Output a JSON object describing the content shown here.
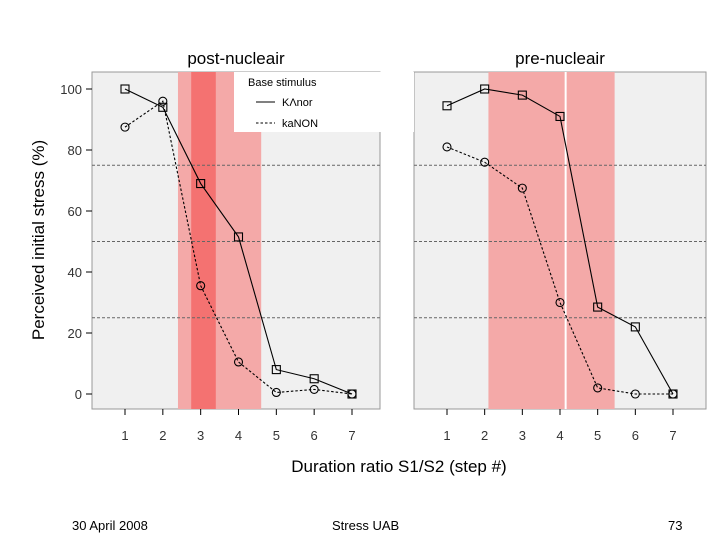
{
  "chart_data": {
    "type": "line",
    "ylabel": "Perceived initial stress (%)",
    "xlabel": "Duration ratio S1/S2 (step #)",
    "x": [
      1,
      2,
      3,
      4,
      5,
      6,
      7
    ],
    "x_ticklabels": [
      "1",
      "2",
      "3",
      "4",
      "5",
      "6",
      "7"
    ],
    "ylim": [
      -5,
      106
    ],
    "yticks": [
      0,
      20,
      40,
      60,
      80,
      100
    ],
    "reference_lines": [
      25,
      50,
      75
    ],
    "legend": {
      "title": "Base stimulus",
      "placement": "top-right of left panel",
      "entries": [
        {
          "label": "KΛnor",
          "style": "solid",
          "marker": "square"
        },
        {
          "label": "kaNON",
          "style": "dashed",
          "marker": "circle"
        }
      ]
    },
    "colors": {
      "panel_bg": "#f0f0f0",
      "band_light": "#f4a9a8",
      "band_dark": "#f47271",
      "ref_line": "#666666",
      "series": "#000000"
    },
    "panels": [
      {
        "title": "post-nucleair",
        "series": [
          {
            "name": "KΛnor",
            "values": [
              100,
              94,
              69,
              51.5,
              8,
              5,
              0
            ]
          },
          {
            "name": "kaNON",
            "values": [
              87.5,
              96,
              35.5,
              10.5,
              0.5,
              1.5,
              0
            ]
          }
        ],
        "shaded_bands": [
          {
            "x_from": 2.4,
            "x_to": 4.6,
            "shade": "light"
          },
          {
            "x_from": 2.75,
            "x_to": 3.4,
            "shade": "dark"
          }
        ],
        "vertical_lines": []
      },
      {
        "title": "pre-nucleair",
        "series": [
          {
            "name": "KΛnor",
            "values": [
              94.5,
              100,
              98,
              91,
              28.5,
              22,
              0
            ]
          },
          {
            "name": "kaNON",
            "values": [
              81,
              76,
              67.5,
              30,
              2,
              0,
              0
            ]
          }
        ],
        "shaded_bands": [
          {
            "x_from": 2.1,
            "x_to": 5.45,
            "shade": "light"
          }
        ],
        "vertical_lines": [
          4.15
        ]
      }
    ]
  },
  "footer": {
    "date": "30 April 2008",
    "center": "Stress UAB",
    "page": "73"
  }
}
